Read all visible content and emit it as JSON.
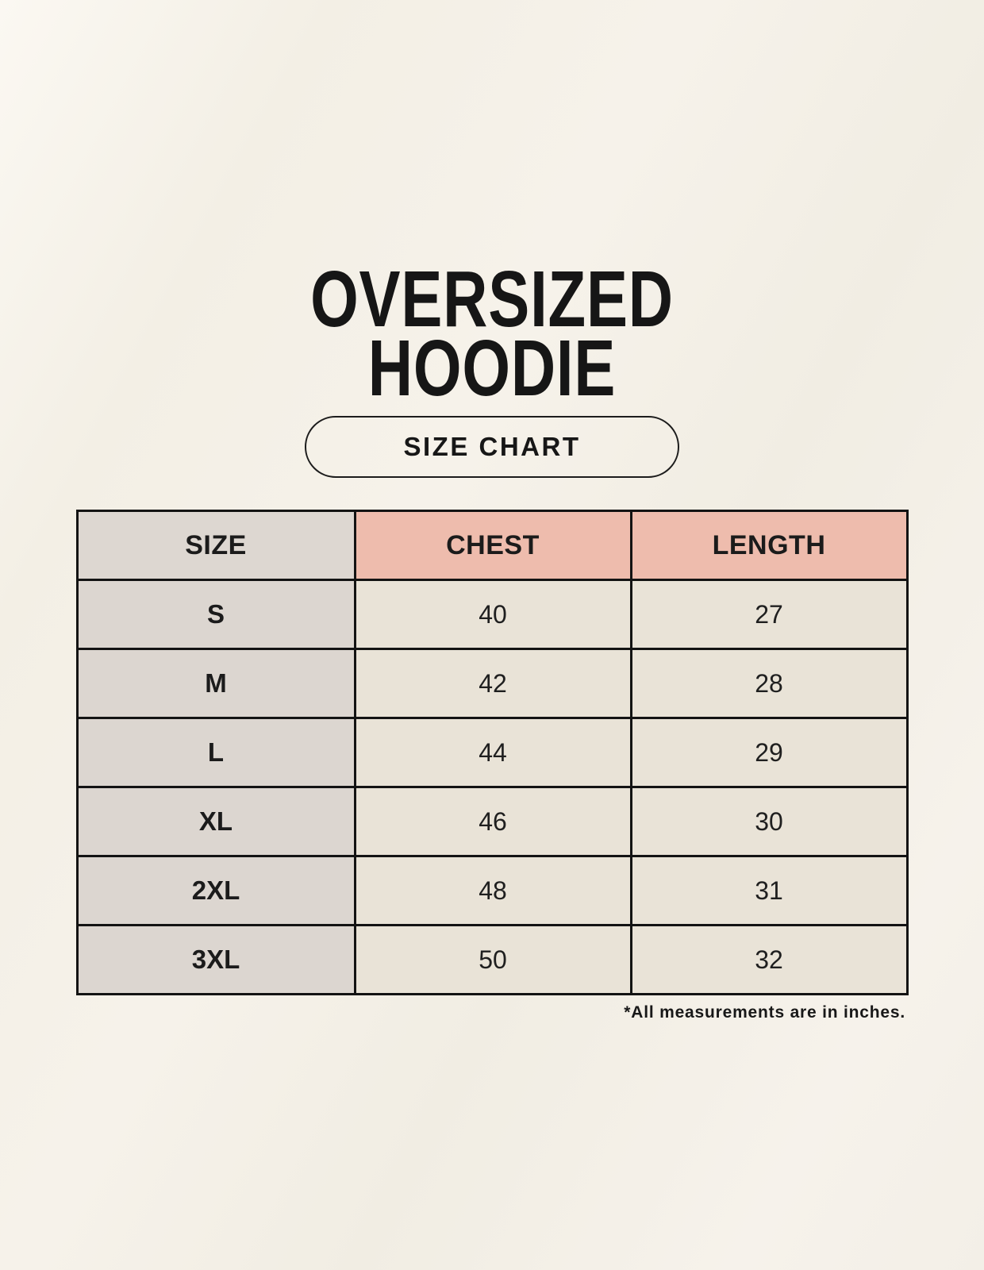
{
  "page": {
    "title_line1": "OVERSIZED",
    "title_line2": "HOODIE",
    "button_label": "SIZE CHART",
    "footnote": "*All measurements are in inches."
  },
  "colors": {
    "background": "#F4F0E7",
    "text": "#1A1A1A",
    "table_border": "#131313",
    "header_size_bg": "#DDD7D1",
    "header_measure_bg": "#EEBCAD",
    "row_label_bg": "#DCD6D0",
    "row_value_bg": "#E9E3D7"
  },
  "chart_data": {
    "type": "table",
    "title": "OVERSIZED HOODIE",
    "subtitle": "SIZE CHART",
    "columns": [
      "SIZE",
      "CHEST",
      "LENGTH"
    ],
    "rows": [
      [
        "S",
        40,
        27
      ],
      [
        "M",
        42,
        28
      ],
      [
        "L",
        44,
        29
      ],
      [
        "XL",
        46,
        30
      ],
      [
        "2XL",
        48,
        31
      ],
      [
        "3XL",
        50,
        32
      ]
    ],
    "units": "inches",
    "note": "*All measurements are in inches."
  }
}
